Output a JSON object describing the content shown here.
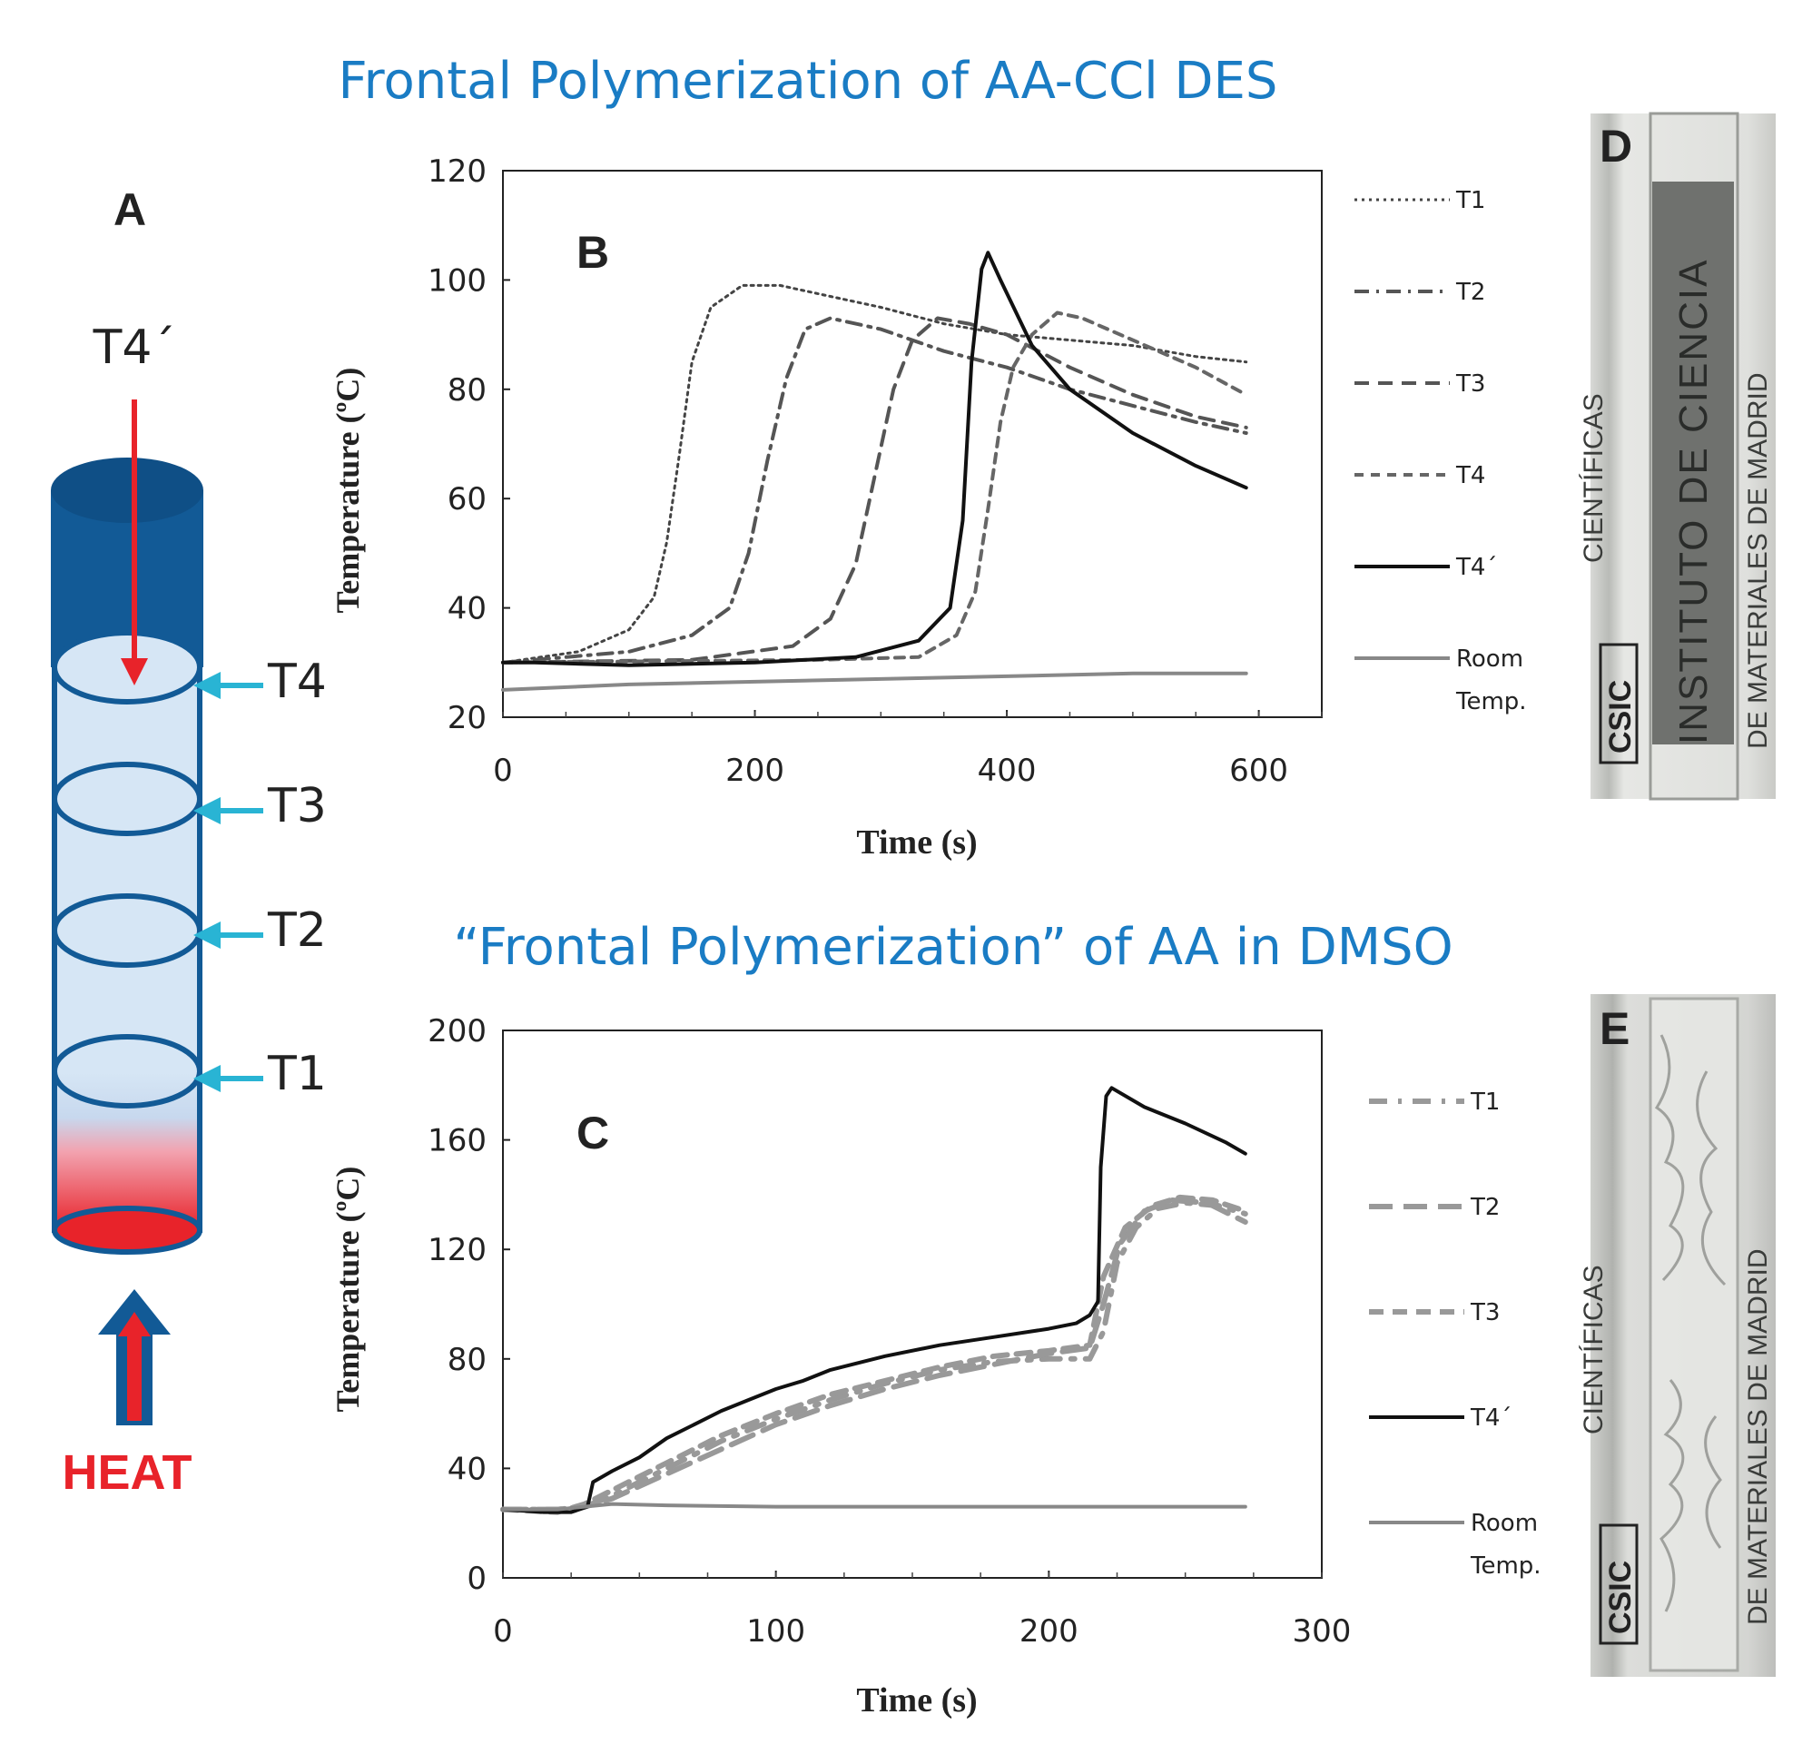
{
  "titles": {
    "top": "Frontal Polymerization of AA-CCl DES",
    "bottom": "“Frontal Polymerization” of AA in DMSO"
  },
  "panels": {
    "A": "A",
    "B": "B",
    "C": "C",
    "D": "D",
    "E": "E"
  },
  "diagram": {
    "top_label": "T4´",
    "sensors": [
      "T4",
      "T3",
      "T2",
      "T1"
    ],
    "heat_label": "HEAT",
    "colors": {
      "tube_dark": "#125a96",
      "tube_light": "#d6e6f5",
      "arrow_red": "#e8232a",
      "arrow_cyan": "#29b4d4",
      "heat_text": "#e8232a"
    }
  },
  "photos": {
    "D": {
      "logo": "CSIC",
      "text_lines": [
        "INSTITUTO DE CIENCIA",
        "DE MATERIALES DE MADRID",
        "CIENTÍFICAS"
      ]
    },
    "E": {
      "logo": "CSIC",
      "text_lines": [
        "DE MATERIALES DE MADRID",
        "CIENTÍFICAS"
      ]
    }
  },
  "chart_data": [
    {
      "id": "B",
      "type": "line",
      "xlabel": "Time (s)",
      "ylabel": "Temperature (ºC)",
      "xlim": [
        0,
        650
      ],
      "ylim": [
        20,
        120
      ],
      "xticks": [
        0,
        200,
        400,
        600
      ],
      "yticks": [
        20,
        40,
        60,
        80,
        100,
        120
      ],
      "legend_position": "right",
      "series": [
        {
          "name": "T1",
          "style": "dotted",
          "color": "#444444",
          "points": [
            [
              0,
              30
            ],
            [
              60,
              32
            ],
            [
              100,
              36
            ],
            [
              120,
              42
            ],
            [
              130,
              52
            ],
            [
              140,
              68
            ],
            [
              150,
              85
            ],
            [
              165,
              95
            ],
            [
              190,
              99
            ],
            [
              220,
              99
            ],
            [
              260,
              97
            ],
            [
              300,
              95
            ],
            [
              350,
              92
            ],
            [
              400,
              90
            ],
            [
              450,
              89
            ],
            [
              500,
              88
            ],
            [
              550,
              86
            ],
            [
              590,
              85
            ]
          ]
        },
        {
          "name": "T2",
          "style": "dashdot",
          "color": "#555555",
          "points": [
            [
              0,
              30
            ],
            [
              100,
              32
            ],
            [
              150,
              35
            ],
            [
              180,
              40
            ],
            [
              195,
              50
            ],
            [
              210,
              67
            ],
            [
              225,
              82
            ],
            [
              240,
              91
            ],
            [
              260,
              93
            ],
            [
              300,
              91
            ],
            [
              350,
              87
            ],
            [
              400,
              84
            ],
            [
              450,
              80
            ],
            [
              500,
              77
            ],
            [
              550,
              74
            ],
            [
              590,
              72
            ]
          ]
        },
        {
          "name": "T3",
          "style": "dashed",
          "color": "#555555",
          "points": [
            [
              0,
              30
            ],
            [
              150,
              30.5
            ],
            [
              230,
              33
            ],
            [
              260,
              38
            ],
            [
              280,
              48
            ],
            [
              295,
              64
            ],
            [
              310,
              80
            ],
            [
              325,
              89
            ],
            [
              345,
              93
            ],
            [
              370,
              92
            ],
            [
              400,
              90
            ],
            [
              450,
              84
            ],
            [
              500,
              79
            ],
            [
              550,
              75
            ],
            [
              590,
              73
            ]
          ]
        },
        {
          "name": "T4",
          "style": "shortdash",
          "color": "#666666",
          "points": [
            [
              0,
              30
            ],
            [
              250,
              30.5
            ],
            [
              330,
              31
            ],
            [
              360,
              35
            ],
            [
              375,
              43
            ],
            [
              385,
              58
            ],
            [
              395,
              74
            ],
            [
              405,
              84
            ],
            [
              420,
              90
            ],
            [
              440,
              94
            ],
            [
              460,
              93
            ],
            [
              500,
              89
            ],
            [
              550,
              84
            ],
            [
              590,
              79
            ]
          ]
        },
        {
          "name": "T4´",
          "style": "solid",
          "color": "#111111",
          "points": [
            [
              0,
              30
            ],
            [
              25,
              30
            ],
            [
              100,
              29.5
            ],
            [
              200,
              30
            ],
            [
              280,
              31
            ],
            [
              330,
              34
            ],
            [
              355,
              40
            ],
            [
              365,
              56
            ],
            [
              372,
              85
            ],
            [
              380,
              102
            ],
            [
              385,
              105
            ],
            [
              395,
              100
            ],
            [
              420,
              88
            ],
            [
              450,
              80
            ],
            [
              500,
              72
            ],
            [
              550,
              66
            ],
            [
              590,
              62
            ]
          ]
        },
        {
          "name": "Room Temp.",
          "style": "solid",
          "color": "#888888",
          "points": [
            [
              0,
              25
            ],
            [
              100,
              26
            ],
            [
              200,
              26.5
            ],
            [
              300,
              27
            ],
            [
              400,
              27.5
            ],
            [
              500,
              28
            ],
            [
              590,
              28
            ]
          ]
        }
      ]
    },
    {
      "id": "C",
      "type": "line",
      "xlabel": "Time (s)",
      "ylabel": "Temperature (ºC)",
      "xlim": [
        0,
        300
      ],
      "ylim": [
        0,
        200
      ],
      "xticks": [
        0,
        100,
        200,
        300
      ],
      "yticks": [
        0,
        40,
        80,
        120,
        160,
        200
      ],
      "legend_position": "right",
      "series": [
        {
          "name": "T1",
          "style": "dashdot-thick",
          "color": "#999999",
          "points": [
            [
              0,
              25
            ],
            [
              20,
              25
            ],
            [
              30,
              26
            ],
            [
              40,
              30
            ],
            [
              60,
              40
            ],
            [
              80,
              50
            ],
            [
              100,
              58
            ],
            [
              120,
              65
            ],
            [
              140,
              71
            ],
            [
              160,
              76
            ],
            [
              180,
              79
            ],
            [
              200,
              80
            ],
            [
              215,
              80
            ],
            [
              220,
              90
            ],
            [
              225,
              115
            ],
            [
              232,
              128
            ],
            [
              240,
              135
            ],
            [
              250,
              137
            ],
            [
              262,
              136
            ],
            [
              272,
              133
            ]
          ]
        },
        {
          "name": "T2",
          "style": "longdash",
          "color": "#999999",
          "points": [
            [
              0,
              25
            ],
            [
              20,
              25
            ],
            [
              30,
              26
            ],
            [
              40,
              29
            ],
            [
              60,
              38
            ],
            [
              80,
              47
            ],
            [
              100,
              56
            ],
            [
              120,
              63
            ],
            [
              140,
              69
            ],
            [
              160,
              74
            ],
            [
              180,
              78
            ],
            [
              200,
              82
            ],
            [
              215,
              84
            ],
            [
              220,
              100
            ],
            [
              226,
              122
            ],
            [
              235,
              134
            ],
            [
              245,
              138
            ],
            [
              258,
              137
            ],
            [
              272,
              130
            ]
          ]
        },
        {
          "name": "T3",
          "style": "dashed-thick",
          "color": "#999999",
          "points": [
            [
              0,
              25
            ],
            [
              20,
              24
            ],
            [
              30,
              27
            ],
            [
              40,
              32
            ],
            [
              60,
              42
            ],
            [
              80,
              52
            ],
            [
              100,
              60
            ],
            [
              120,
              67
            ],
            [
              140,
              72
            ],
            [
              160,
              77
            ],
            [
              180,
              81
            ],
            [
              200,
              83
            ],
            [
              215,
              85
            ],
            [
              220,
              110
            ],
            [
              228,
              128
            ],
            [
              238,
              136
            ],
            [
              248,
              139
            ],
            [
              260,
              138
            ],
            [
              272,
              134
            ]
          ]
        },
        {
          "name": "T4´",
          "style": "solid",
          "color": "#111111",
          "points": [
            [
              0,
              25
            ],
            [
              15,
              24
            ],
            [
              25,
              24
            ],
            [
              31,
              26
            ],
            [
              33,
              35
            ],
            [
              40,
              39
            ],
            [
              50,
              44
            ],
            [
              60,
              51
            ],
            [
              70,
              56
            ],
            [
              80,
              61
            ],
            [
              90,
              65
            ],
            [
              100,
              69
            ],
            [
              110,
              72
            ],
            [
              120,
              76
            ],
            [
              140,
              81
            ],
            [
              160,
              85
            ],
            [
              180,
              88
            ],
            [
              200,
              91
            ],
            [
              210,
              93
            ],
            [
              215,
              96
            ],
            [
              218,
              101
            ],
            [
              219,
              150
            ],
            [
              221,
              176
            ],
            [
              223,
              179
            ],
            [
              235,
              172
            ],
            [
              250,
              166
            ],
            [
              265,
              159
            ],
            [
              272,
              155
            ]
          ]
        },
        {
          "name": "Room Temp.",
          "style": "solid",
          "color": "#888888",
          "points": [
            [
              0,
              25
            ],
            [
              20,
              25
            ],
            [
              40,
              27
            ],
            [
              60,
              26.5
            ],
            [
              100,
              26
            ],
            [
              150,
              26
            ],
            [
              200,
              26
            ],
            [
              250,
              26
            ],
            [
              272,
              26
            ]
          ]
        }
      ]
    }
  ]
}
